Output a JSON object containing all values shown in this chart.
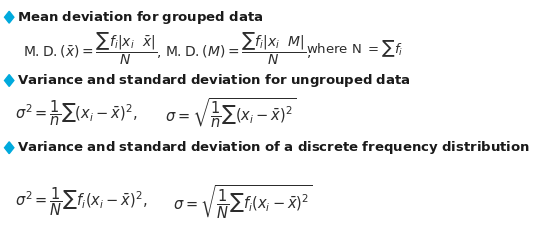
{
  "background_color": "#ffffff",
  "diamond_color": "#00aadd",
  "text_color": "#1a1a2e",
  "formula_color": "#1a1a2e",
  "title1": "Mean deviation for grouped data",
  "title2": "Variance and standard deviation for ungrouped data",
  "title3": "Variance and standard deviation of a discrete frequency distribution",
  "figsize": [
    5.34,
    2.48
  ],
  "dpi": 100
}
